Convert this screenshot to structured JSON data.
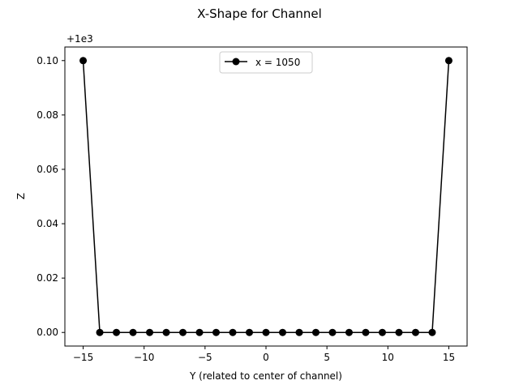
{
  "chart_data": {
    "type": "line",
    "title": "X-Shape for Channel",
    "xlabel": "Y (related to center of channel)",
    "ylabel": "Z",
    "offset_text": "+1e3",
    "xlim": [
      -16.5,
      16.5
    ],
    "ylim": [
      -0.005,
      0.105
    ],
    "xticks": [
      -15,
      -10,
      -5,
      0,
      5,
      10,
      15
    ],
    "xtick_labels": [
      "−15",
      "−10",
      "−5",
      "0",
      "5",
      "10",
      "15"
    ],
    "yticks": [
      0.0,
      0.02,
      0.04,
      0.06,
      0.08,
      0.1
    ],
    "ytick_labels": [
      "0.00",
      "0.02",
      "0.04",
      "0.06",
      "0.08",
      "0.10"
    ],
    "grid": false,
    "legend_position": "upper center",
    "series": [
      {
        "name": "x = 1050",
        "color": "#000000",
        "marker": "circle",
        "x": [
          -15,
          -13.6364,
          -12.2727,
          -10.9091,
          -9.5455,
          -8.1818,
          -6.8182,
          -5.4545,
          -4.0909,
          -2.7273,
          -1.3636,
          0,
          1.3636,
          2.7273,
          4.0909,
          5.4545,
          6.8182,
          8.1818,
          9.5455,
          10.9091,
          12.2727,
          13.6364,
          15
        ],
        "y": [
          0.1,
          0,
          0,
          0,
          0,
          0,
          0,
          0,
          0,
          0,
          0,
          0,
          0,
          0,
          0,
          0,
          0,
          0,
          0,
          0,
          0,
          0,
          0.1
        ]
      }
    ]
  }
}
